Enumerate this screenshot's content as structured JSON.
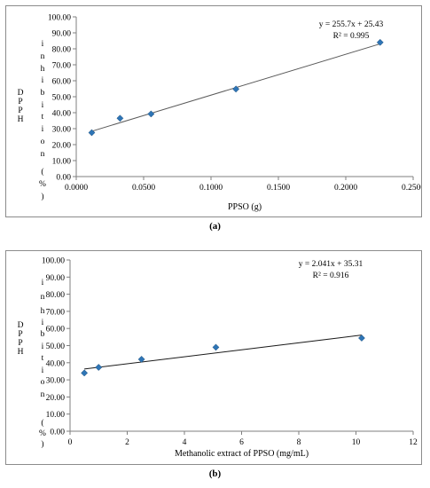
{
  "captions": {
    "a": "(a)",
    "b": "(b)"
  },
  "chart_data": [
    {
      "type": "scatter",
      "panel": "a",
      "xlabel": "PPSO (g)",
      "ylabel": "DPPH inhibition (%)",
      "xlim": [
        0.0,
        0.25
      ],
      "ylim": [
        0.0,
        100.0
      ],
      "xticks": [
        "0.0000",
        "0.0500",
        "0.1000",
        "0.1500",
        "0.2000",
        "0.2500"
      ],
      "xtick_values": [
        0,
        0.05,
        0.1,
        0.15,
        0.2,
        0.25
      ],
      "yticks": [
        "0.00",
        "10.00",
        "20.00",
        "30.00",
        "40.00",
        "50.00",
        "60.00",
        "70.00",
        "80.00",
        "90.00",
        "100.00"
      ],
      "ytick_values": [
        0,
        10,
        20,
        30,
        40,
        50,
        60,
        70,
        80,
        90,
        100
      ],
      "grid": false,
      "series": [
        {
          "x": [
            0.0115,
            0.0325,
            0.0555,
            0.1185,
            0.2255
          ],
          "y": [
            27.5,
            36.5,
            39.2,
            54.8,
            84.0
          ]
        }
      ],
      "trendline": {
        "slope": 255.7,
        "intercept": 25.43,
        "x_range": [
          0.0115,
          0.2255
        ]
      },
      "annotations": {
        "equation": "y = 255.7x + 25.43",
        "r2": "R² = 0.995"
      },
      "marker_color": "#2e75b6",
      "line_color": "#595959"
    },
    {
      "type": "scatter",
      "panel": "b",
      "xlabel": "Methanolic extract of PPSO (mg/mL)",
      "ylabel": "DPPH inhibition (%)",
      "xlim": [
        0,
        12
      ],
      "ylim": [
        0.0,
        100.0
      ],
      "xticks": [
        "0",
        "2",
        "4",
        "6",
        "8",
        "10",
        "12"
      ],
      "xtick_values": [
        0,
        2,
        4,
        6,
        8,
        10,
        12
      ],
      "yticks": [
        "0.00",
        "10.00",
        "20.00",
        "30.00",
        "40.00",
        "50.00",
        "60.00",
        "70.00",
        "80.00",
        "90.00",
        "100.00"
      ],
      "ytick_values": [
        0,
        10,
        20,
        30,
        40,
        50,
        60,
        70,
        80,
        90,
        100
      ],
      "grid": false,
      "series": [
        {
          "x": [
            0.5,
            1.0,
            2.5,
            5.1,
            10.2
          ],
          "y": [
            34.0,
            37.3,
            42.0,
            49.0,
            54.4
          ]
        }
      ],
      "trendline": {
        "slope": 2.041,
        "intercept": 35.31,
        "x_range": [
          0.5,
          10.2
        ]
      },
      "annotations": {
        "equation": "y = 2.041x + 35.31",
        "r2": "R² = 0.916"
      },
      "marker_color": "#2e75b6",
      "line_color": "#1a1a1a"
    }
  ]
}
